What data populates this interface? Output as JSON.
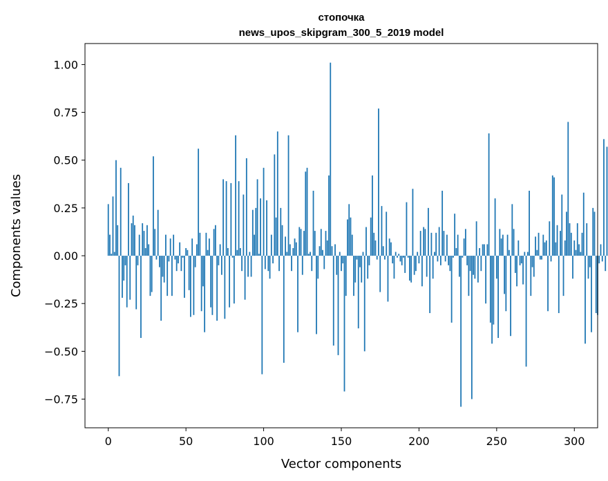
{
  "chart_data": {
    "type": "bar",
    "title": "стопочка",
    "subtitle": "news_upos_skipgram_300_5_2019 model",
    "xlabel": "Vector components",
    "ylabel": "Components values",
    "xlim": [
      -15,
      315
    ],
    "ylim": [
      -0.9,
      1.11
    ],
    "xticks": [
      0,
      50,
      100,
      150,
      200,
      250,
      300
    ],
    "yticks": [
      -0.75,
      -0.5,
      -0.25,
      0.0,
      0.25,
      0.5,
      0.75,
      1.0
    ],
    "xtick_labels": [
      "0",
      "50",
      "100",
      "150",
      "200",
      "250",
      "300"
    ],
    "ytick_labels": [
      "−0.75",
      "−0.50",
      "−0.25",
      "0.00",
      "0.25",
      "0.50",
      "0.75",
      "1.00"
    ],
    "color": "#1f77b4",
    "values": [
      0.27,
      0.11,
      0.01,
      0.31,
      0.02,
      0.5,
      0.16,
      -0.63,
      0.46,
      -0.22,
      -0.13,
      -0.05,
      -0.27,
      0.38,
      -0.23,
      0.17,
      0.21,
      0.16,
      -0.28,
      -0.05,
      0.11,
      -0.43,
      0.17,
      0.13,
      0.04,
      0.16,
      0.06,
      -0.21,
      -0.19,
      0.52,
      0.14,
      -0.02,
      0.24,
      -0.06,
      -0.34,
      -0.11,
      -0.14,
      0.11,
      -0.21,
      -0.03,
      0.09,
      -0.21,
      0.11,
      -0.02,
      -0.08,
      -0.04,
      0.07,
      -0.08,
      -0.01,
      -0.22,
      0.04,
      0.03,
      -0.18,
      -0.32,
      0.09,
      -0.31,
      -0.06,
      0.06,
      0.56,
      0.12,
      -0.29,
      -0.16,
      -0.4,
      0.12,
      0.03,
      0.09,
      -0.27,
      -0.31,
      0.14,
      0.16,
      -0.34,
      -0.05,
      0.06,
      -0.1,
      0.4,
      -0.33,
      0.39,
      0.04,
      -0.27,
      0.38,
      -0.01,
      -0.25,
      0.63,
      0.03,
      0.39,
      0.04,
      -0.08,
      0.32,
      -0.23,
      0.51,
      -0.11,
      0.02,
      -0.11,
      0.24,
      0.11,
      0.25,
      0.4,
      0.01,
      0.3,
      -0.62,
      0.46,
      -0.07,
      0.29,
      -0.08,
      -0.12,
      0.11,
      -0.04,
      0.53,
      0.2,
      0.65,
      -0.08,
      0.25,
      0.16,
      -0.56,
      0.1,
      0.02,
      0.63,
      0.06,
      -0.08,
      0.04,
      0.09,
      0.07,
      -0.4,
      0.15,
      0.14,
      -0.1,
      0.13,
      0.44,
      0.46,
      0.01,
      0.02,
      -0.08,
      0.34,
      0.13,
      -0.41,
      -0.12,
      0.05,
      0.14,
      0.03,
      -0.07,
      0.13,
      0.08,
      0.42,
      1.01,
      0.05,
      -0.47,
      0.06,
      -0.1,
      -0.52,
      0.02,
      -0.08,
      -0.04,
      -0.71,
      -0.21,
      0.19,
      0.27,
      0.2,
      0.11,
      -0.21,
      -0.14,
      -0.02,
      -0.38,
      -0.06,
      -0.14,
      0.02,
      -0.5,
      0.15,
      -0.12,
      -0.05,
      0.2,
      0.42,
      0.12,
      0.08,
      -0.02,
      0.77,
      -0.19,
      0.26,
      0.05,
      -0.02,
      0.23,
      -0.24,
      0.09,
      0.07,
      -0.04,
      -0.12,
      0.02,
      -0.01,
      0.01,
      -0.03,
      -0.05,
      -0.01,
      -0.09,
      0.28,
      -0.01,
      -0.13,
      -0.14,
      0.35,
      -0.1,
      -0.08,
      0.02,
      -0.04,
      0.13,
      -0.16,
      0.15,
      0.14,
      -0.11,
      0.25,
      -0.3,
      0.12,
      -0.12,
      0.02,
      0.12,
      -0.03,
      0.15,
      -0.05,
      0.34,
      0.13,
      -0.03,
      0.11,
      -0.05,
      -0.08,
      -0.35,
      -0.01,
      0.22,
      0.04,
      0.11,
      -0.11,
      -0.79,
      -0.01,
      0.09,
      0.14,
      -0.05,
      -0.21,
      -0.08,
      -0.75,
      -0.1,
      -0.12,
      0.18,
      -0.14,
      0.04,
      -0.08,
      0.06,
      0.06,
      -0.25,
      0.06,
      0.64,
      -0.35,
      -0.46,
      -0.36,
      0.3,
      -0.12,
      -0.43,
      0.14,
      0.09,
      0.11,
      -0.2,
      -0.29,
      0.11,
      0.03,
      -0.42,
      0.27,
      0.14,
      -0.09,
      -0.16,
      0.08,
      -0.05,
      -0.04,
      -0.15,
      0.02,
      -0.58,
      0.02,
      0.34,
      -0.21,
      -0.06,
      -0.11,
      0.1,
      0.03,
      0.12,
      -0.02,
      -0.02,
      0.11,
      0.07,
      0.08,
      -0.29,
      0.18,
      -0.03,
      0.42,
      0.41,
      0.07,
      0.16,
      -0.3,
      0.13,
      0.32,
      -0.21,
      0.08,
      0.23,
      0.7,
      0.17,
      0.12,
      -0.12,
      0.08,
      0.03,
      0.17,
      0.06,
      0.02,
      0.12,
      0.33,
      -0.46,
      0.17,
      -0.12,
      -0.06,
      -0.4,
      0.25,
      0.23,
      -0.3,
      -0.31,
      -0.04,
      0.06,
      -0.03,
      0.61,
      -0.08,
      0.57
    ]
  }
}
